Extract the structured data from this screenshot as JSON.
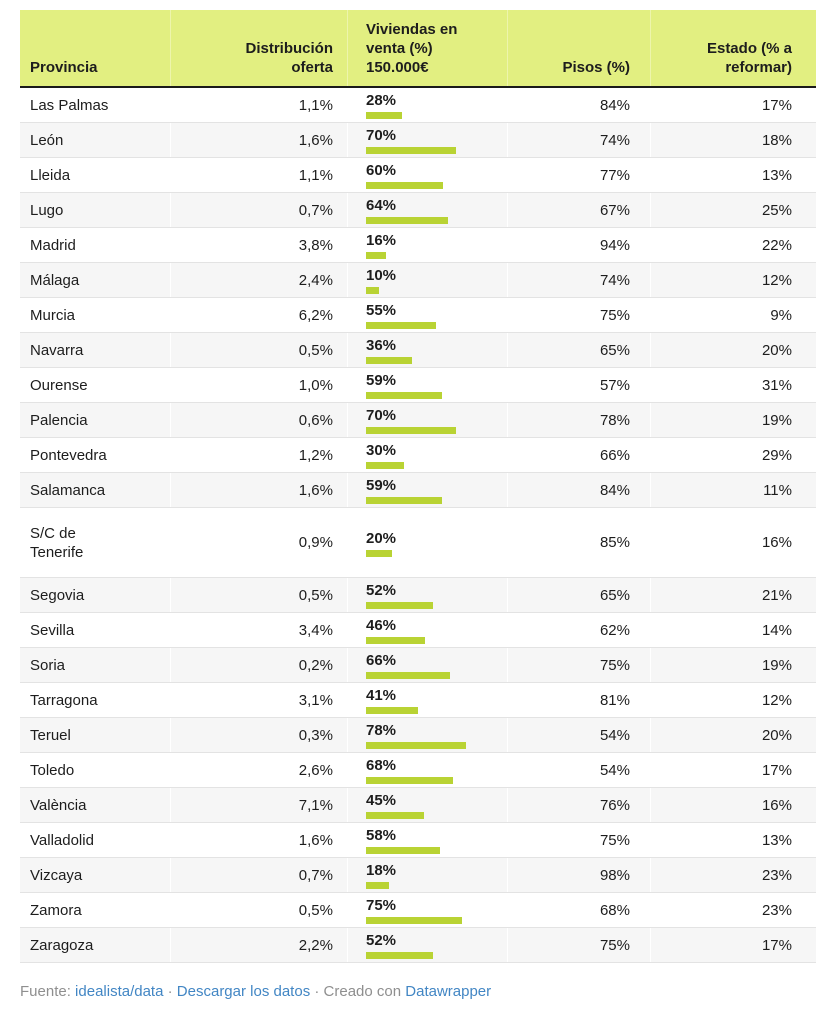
{
  "table": {
    "columns": [
      {
        "label": "Provincia",
        "align": "left"
      },
      {
        "label": "Distribución\noferta",
        "align": "right"
      },
      {
        "label": "Viviendas en\nventa (%)\n150.000€",
        "align": "left"
      },
      {
        "label": "Pisos (%)",
        "align": "right"
      },
      {
        "label": "Estado (% a\nreformar)",
        "align": "right"
      }
    ],
    "rows": [
      {
        "provincia": "Las Palmas",
        "distribucion_oferta": "1,1%",
        "viviendas_label": "28%",
        "viviendas_pct": 28,
        "pisos": "84%",
        "estado": "17%",
        "tall": false
      },
      {
        "provincia": "León",
        "distribucion_oferta": "1,6%",
        "viviendas_label": "70%",
        "viviendas_pct": 70,
        "pisos": "74%",
        "estado": "18%",
        "tall": false
      },
      {
        "provincia": "Lleida",
        "distribucion_oferta": "1,1%",
        "viviendas_label": "60%",
        "viviendas_pct": 60,
        "pisos": "77%",
        "estado": "13%",
        "tall": false
      },
      {
        "provincia": "Lugo",
        "distribucion_oferta": "0,7%",
        "viviendas_label": "64%",
        "viviendas_pct": 64,
        "pisos": "67%",
        "estado": "25%",
        "tall": false
      },
      {
        "provincia": "Madrid",
        "distribucion_oferta": "3,8%",
        "viviendas_label": "16%",
        "viviendas_pct": 16,
        "pisos": "94%",
        "estado": "22%",
        "tall": false
      },
      {
        "provincia": "Málaga",
        "distribucion_oferta": "2,4%",
        "viviendas_label": "10%",
        "viviendas_pct": 10,
        "pisos": "74%",
        "estado": "12%",
        "tall": false
      },
      {
        "provincia": "Murcia",
        "distribucion_oferta": "6,2%",
        "viviendas_label": "55%",
        "viviendas_pct": 55,
        "pisos": "75%",
        "estado": "9%",
        "tall": false
      },
      {
        "provincia": "Navarra",
        "distribucion_oferta": "0,5%",
        "viviendas_label": "36%",
        "viviendas_pct": 36,
        "pisos": "65%",
        "estado": "20%",
        "tall": false
      },
      {
        "provincia": "Ourense",
        "distribucion_oferta": "1,0%",
        "viviendas_label": "59%",
        "viviendas_pct": 59,
        "pisos": "57%",
        "estado": "31%",
        "tall": false
      },
      {
        "provincia": "Palencia",
        "distribucion_oferta": "0,6%",
        "viviendas_label": "70%",
        "viviendas_pct": 70,
        "pisos": "78%",
        "estado": "19%",
        "tall": false
      },
      {
        "provincia": "Pontevedra",
        "distribucion_oferta": "1,2%",
        "viviendas_label": "30%",
        "viviendas_pct": 30,
        "pisos": "66%",
        "estado": "29%",
        "tall": false
      },
      {
        "provincia": "Salamanca",
        "distribucion_oferta": "1,6%",
        "viviendas_label": "59%",
        "viviendas_pct": 59,
        "pisos": "84%",
        "estado": "11%",
        "tall": false
      },
      {
        "provincia": "S/C de\nTenerife",
        "distribucion_oferta": "0,9%",
        "viviendas_label": "20%",
        "viviendas_pct": 20,
        "pisos": "85%",
        "estado": "16%",
        "tall": true
      },
      {
        "provincia": "Segovia",
        "distribucion_oferta": "0,5%",
        "viviendas_label": "52%",
        "viviendas_pct": 52,
        "pisos": "65%",
        "estado": "21%",
        "tall": false
      },
      {
        "provincia": "Sevilla",
        "distribucion_oferta": "3,4%",
        "viviendas_label": "46%",
        "viviendas_pct": 46,
        "pisos": "62%",
        "estado": "14%",
        "tall": false
      },
      {
        "provincia": "Soria",
        "distribucion_oferta": "0,2%",
        "viviendas_label": "66%",
        "viviendas_pct": 66,
        "pisos": "75%",
        "estado": "19%",
        "tall": false
      },
      {
        "provincia": "Tarragona",
        "distribucion_oferta": "3,1%",
        "viviendas_label": "41%",
        "viviendas_pct": 41,
        "pisos": "81%",
        "estado": "12%",
        "tall": false
      },
      {
        "provincia": "Teruel",
        "distribucion_oferta": "0,3%",
        "viviendas_label": "78%",
        "viviendas_pct": 78,
        "pisos": "54%",
        "estado": "20%",
        "tall": false
      },
      {
        "provincia": "Toledo",
        "distribucion_oferta": "2,6%",
        "viviendas_label": "68%",
        "viviendas_pct": 68,
        "pisos": "54%",
        "estado": "17%",
        "tall": false
      },
      {
        "provincia": "València",
        "distribucion_oferta": "7,1%",
        "viviendas_label": "45%",
        "viviendas_pct": 45,
        "pisos": "76%",
        "estado": "16%",
        "tall": false
      },
      {
        "provincia": "Valladolid",
        "distribucion_oferta": "1,6%",
        "viviendas_label": "58%",
        "viviendas_pct": 58,
        "pisos": "75%",
        "estado": "13%",
        "tall": false
      },
      {
        "provincia": "Vizcaya",
        "distribucion_oferta": "0,7%",
        "viviendas_label": "18%",
        "viviendas_pct": 18,
        "pisos": "98%",
        "estado": "23%",
        "tall": false
      },
      {
        "provincia": "Zamora",
        "distribucion_oferta": "0,5%",
        "viviendas_label": "75%",
        "viviendas_pct": 75,
        "pisos": "68%",
        "estado": "23%",
        "tall": false
      },
      {
        "provincia": "Zaragoza",
        "distribucion_oferta": "2,2%",
        "viviendas_label": "52%",
        "viviendas_pct": 52,
        "pisos": "75%",
        "estado": "17%",
        "tall": false
      }
    ]
  },
  "footer": {
    "source_label": "Fuente: ",
    "source_link": "idealista/data",
    "separator": " · ",
    "download_link": "Descargar los datos",
    "created_label": "Creado con ",
    "datawrapper_link": "Datawrapper"
  },
  "colors": {
    "header_bg": "#e2ef81",
    "bar_green": "#b9d334",
    "alt_row_bg": "#f6f6f6",
    "link_blue": "#4286c4",
    "footer_gray": "#8f8f8f",
    "header_border": "#1a1a1a"
  },
  "chart_data": {
    "type": "table",
    "title": "",
    "columns": [
      "Provincia",
      "Distribución oferta",
      "Viviendas en venta (%) 150.000€",
      "Pisos (%)",
      "Estado (% a reformar)"
    ],
    "bar_column": "Viviendas en venta (%) 150.000€",
    "bar_range": [
      0,
      100
    ],
    "rows": [
      [
        "Las Palmas",
        1.1,
        28,
        84,
        17
      ],
      [
        "León",
        1.6,
        70,
        74,
        18
      ],
      [
        "Lleida",
        1.1,
        60,
        77,
        13
      ],
      [
        "Lugo",
        0.7,
        64,
        67,
        25
      ],
      [
        "Madrid",
        3.8,
        16,
        94,
        22
      ],
      [
        "Málaga",
        2.4,
        10,
        74,
        12
      ],
      [
        "Murcia",
        6.2,
        55,
        75,
        9
      ],
      [
        "Navarra",
        0.5,
        36,
        65,
        20
      ],
      [
        "Ourense",
        1.0,
        59,
        57,
        31
      ],
      [
        "Palencia",
        0.6,
        70,
        78,
        19
      ],
      [
        "Pontevedra",
        1.2,
        30,
        66,
        29
      ],
      [
        "Salamanca",
        1.6,
        59,
        84,
        11
      ],
      [
        "S/C de Tenerife",
        0.9,
        20,
        85,
        16
      ],
      [
        "Segovia",
        0.5,
        52,
        65,
        21
      ],
      [
        "Sevilla",
        3.4,
        46,
        62,
        14
      ],
      [
        "Soria",
        0.2,
        66,
        75,
        19
      ],
      [
        "Tarragona",
        3.1,
        41,
        81,
        12
      ],
      [
        "Teruel",
        0.3,
        78,
        54,
        20
      ],
      [
        "Toledo",
        2.6,
        68,
        54,
        17
      ],
      [
        "València",
        7.1,
        45,
        76,
        16
      ],
      [
        "Valladolid",
        1.6,
        58,
        75,
        13
      ],
      [
        "Vizcaya",
        0.7,
        18,
        98,
        23
      ],
      [
        "Zamora",
        0.5,
        75,
        68,
        23
      ],
      [
        "Zaragoza",
        2.2,
        52,
        75,
        17
      ]
    ]
  }
}
